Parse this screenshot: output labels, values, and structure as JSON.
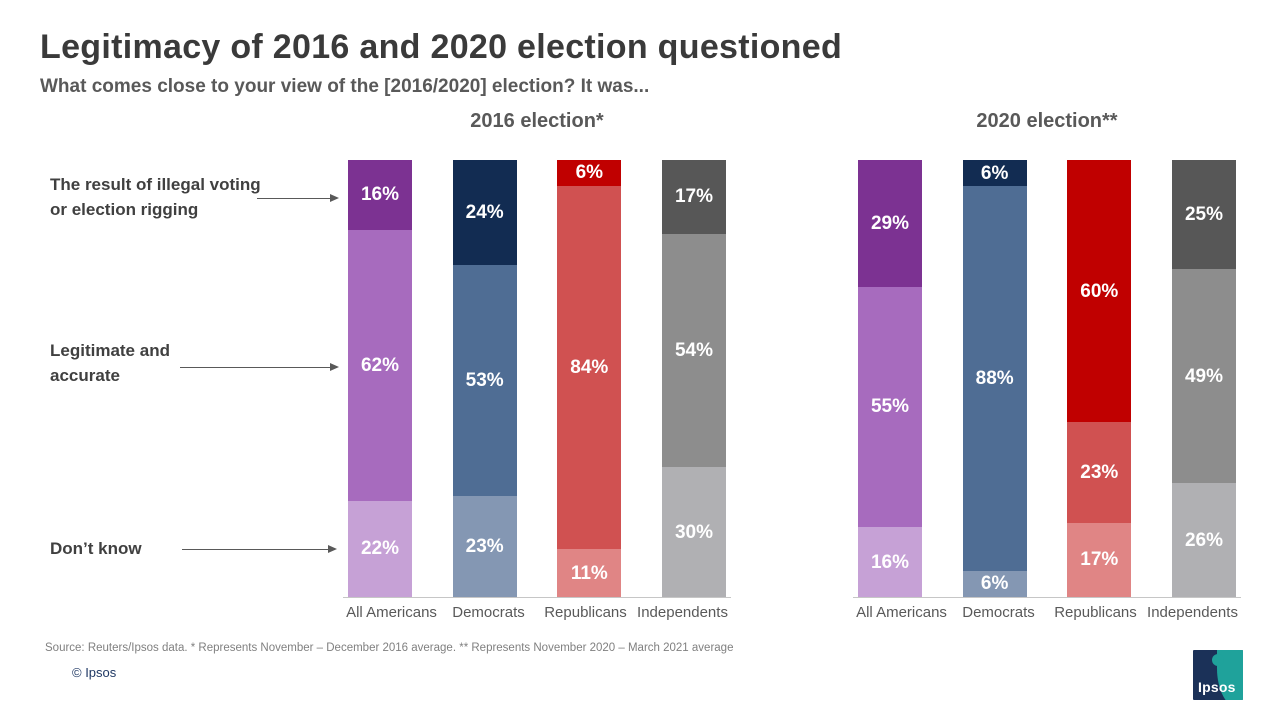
{
  "header": {
    "title": "Legitimacy of 2016 and 2020 election questioned",
    "subtitle": "What comes close to your view of the [2016/2020] election? It was..."
  },
  "annotations": [
    {
      "text": "The result of illegal voting or election rigging"
    },
    {
      "text": "Legitimate and accurate"
    },
    {
      "text": "Don’t know"
    }
  ],
  "chart_data": [
    {
      "type": "bar",
      "stacked": true,
      "title": "2016 election*",
      "categories": [
        "All Americans",
        "Democrats",
        "Republicans",
        "Independents"
      ],
      "series": [
        {
          "name": "The result of illegal voting or election rigging",
          "values": [
            16,
            24,
            6,
            17
          ]
        },
        {
          "name": "Legitimate and accurate",
          "values": [
            62,
            53,
            84,
            54
          ]
        },
        {
          "name": "Don’t know",
          "values": [
            22,
            23,
            11,
            30
          ]
        }
      ],
      "value_suffix": "%",
      "ylim": [
        0,
        100
      ],
      "grid": false,
      "legend_position": "left-annotations"
    },
    {
      "type": "bar",
      "stacked": true,
      "title": "2020 election**",
      "categories": [
        "All Americans",
        "Democrats",
        "Republicans",
        "Independents"
      ],
      "series": [
        {
          "name": "The result of illegal voting or election rigging",
          "values": [
            29,
            6,
            60,
            25
          ]
        },
        {
          "name": "Legitimate and accurate",
          "values": [
            55,
            88,
            23,
            49
          ]
        },
        {
          "name": "Don’t know",
          "values": [
            16,
            6,
            17,
            26
          ]
        }
      ],
      "value_suffix": "%",
      "ylim": [
        0,
        100
      ],
      "grid": false,
      "legend_position": "left-annotations"
    }
  ],
  "palette": [
    [
      "#7c3292",
      "#a76bbe",
      "#c6a1d6"
    ],
    [
      "#122c52",
      "#4f6d94",
      "#8497b3"
    ],
    [
      "#c00000",
      "#d05151",
      "#e08585"
    ],
    [
      "#575757",
      "#8d8d8d",
      "#b0b0b3"
    ]
  ],
  "footer": {
    "source": "Source: Reuters/Ipsos data. * Represents November – December 2016 average. ** Represents November 2020 – March 2021 average",
    "copyright": "© Ipsos",
    "logo": "Ipsos"
  }
}
